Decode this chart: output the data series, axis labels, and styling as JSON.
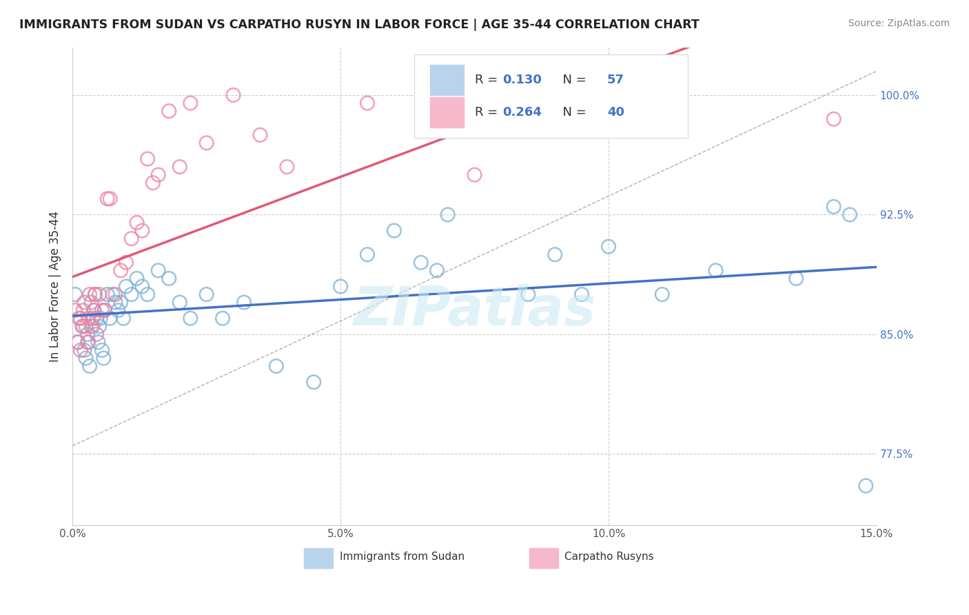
{
  "title": "IMMIGRANTS FROM SUDAN VS CARPATHO RUSYN IN LABOR FORCE | AGE 35-44 CORRELATION CHART",
  "source": "Source: ZipAtlas.com",
  "ylabel": "In Labor Force | Age 35-44",
  "xlim": [
    0.0,
    15.0
  ],
  "ylim": [
    73.0,
    103.0
  ],
  "x_ticks": [
    0.0,
    5.0,
    10.0,
    15.0
  ],
  "x_tick_labels": [
    "0.0%",
    "5.0%",
    "10.0%",
    "15.0%"
  ],
  "y_ticks": [
    77.5,
    85.0,
    92.5,
    100.0
  ],
  "y_tick_labels": [
    "77.5%",
    "85.0%",
    "92.5%",
    "100.0%"
  ],
  "sudan_color": "#7bafd4",
  "rusyn_color": "#f080a0",
  "regression_blue": "#4472c4",
  "regression_pink": "#e05878",
  "sudan_legend_color": "#b8d4ec",
  "rusyn_legend_color": "#f8b8cc",
  "sudan_R": "0.130",
  "sudan_N": "57",
  "rusyn_R": "0.264",
  "rusyn_N": "40",
  "watermark": "ZIPatlas",
  "sudan_x": [
    0.05,
    0.1,
    0.15,
    0.2,
    0.22,
    0.25,
    0.28,
    0.3,
    0.32,
    0.35,
    0.38,
    0.4,
    0.42,
    0.45,
    0.48,
    0.5,
    0.52,
    0.55,
    0.58,
    0.6,
    0.65,
    0.7,
    0.75,
    0.8,
    0.85,
    0.9,
    0.95,
    1.0,
    1.1,
    1.2,
    1.3,
    1.4,
    1.6,
    1.8,
    2.0,
    2.2,
    2.5,
    2.8,
    3.2,
    3.8,
    4.5,
    5.0,
    5.5,
    6.0,
    6.5,
    7.0,
    8.5,
    9.0,
    10.0,
    11.0,
    12.0,
    13.5,
    14.5,
    14.8,
    6.8,
    9.5,
    14.2
  ],
  "sudan_y": [
    87.5,
    84.5,
    86.0,
    85.5,
    84.0,
    83.5,
    85.0,
    84.5,
    83.0,
    87.0,
    85.5,
    86.5,
    87.5,
    86.0,
    84.5,
    85.5,
    86.0,
    84.0,
    83.5,
    86.5,
    87.5,
    86.0,
    87.5,
    87.0,
    86.5,
    87.0,
    86.0,
    88.0,
    87.5,
    88.5,
    88.0,
    87.5,
    89.0,
    88.5,
    87.0,
    86.0,
    87.5,
    86.0,
    87.0,
    83.0,
    82.0,
    88.0,
    90.0,
    91.5,
    89.5,
    92.5,
    87.5,
    90.0,
    90.5,
    87.5,
    89.0,
    88.5,
    92.5,
    75.5,
    89.0,
    87.5,
    93.0
  ],
  "rusyn_x": [
    0.05,
    0.1,
    0.12,
    0.15,
    0.18,
    0.2,
    0.22,
    0.25,
    0.28,
    0.3,
    0.32,
    0.35,
    0.38,
    0.4,
    0.42,
    0.45,
    0.5,
    0.55,
    0.6,
    0.65,
    0.7,
    0.8,
    0.9,
    1.0,
    1.1,
    1.2,
    1.3,
    1.4,
    1.5,
    1.6,
    1.8,
    2.0,
    2.2,
    2.5,
    3.0,
    3.5,
    4.0,
    5.5,
    7.5,
    14.2
  ],
  "rusyn_y": [
    86.5,
    84.5,
    86.0,
    84.0,
    85.5,
    86.5,
    87.0,
    85.5,
    84.5,
    86.0,
    87.5,
    85.5,
    86.0,
    86.5,
    87.5,
    85.0,
    87.5,
    86.5,
    86.5,
    93.5,
    93.5,
    87.5,
    89.0,
    89.5,
    91.0,
    92.0,
    91.5,
    96.0,
    94.5,
    95.0,
    99.0,
    95.5,
    99.5,
    97.0,
    100.0,
    97.5,
    95.5,
    99.5,
    95.0,
    98.5
  ]
}
